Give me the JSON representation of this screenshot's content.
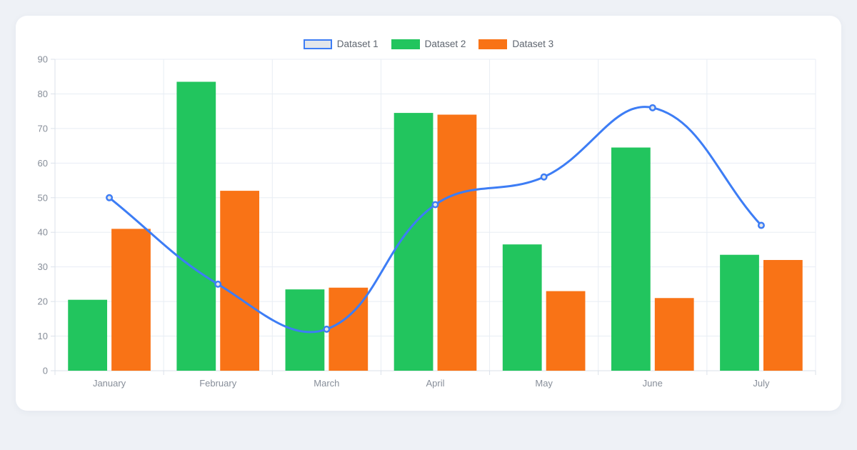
{
  "page": {
    "background_color": "#eef1f6",
    "card_background_color": "#ffffff"
  },
  "chart_data": {
    "type": "mixed-bar-line",
    "title": "",
    "xlabel": "",
    "ylabel": "",
    "categories": [
      "January",
      "February",
      "March",
      "April",
      "May",
      "June",
      "July"
    ],
    "series": [
      {
        "name": "Dataset 1",
        "type": "line",
        "color": "#3d7df5",
        "point_fill": "#e3e6ea",
        "values": [
          50,
          25,
          12,
          48,
          56,
          76,
          42
        ]
      },
      {
        "name": "Dataset 2",
        "type": "bar",
        "color": "#22c55e",
        "values": [
          20.5,
          83.5,
          23.5,
          74.5,
          36.5,
          64.5,
          33.5
        ]
      },
      {
        "name": "Dataset 3",
        "type": "bar",
        "color": "#f97316",
        "values": [
          41,
          52,
          24,
          74,
          23,
          21,
          32
        ]
      }
    ],
    "ylim": [
      0,
      90
    ],
    "y_ticks": [
      0,
      10,
      20,
      30,
      40,
      50,
      60,
      70,
      80,
      90
    ],
    "grid": true,
    "legend_position": "top",
    "line_tension": 0.4,
    "colors": {
      "grid_line": "#e8edf4",
      "axis_border": "#dbe1ea",
      "tick_label": "#878e99",
      "legend_text": "#5f6670",
      "line_swatch_fill": "#e3e6ea"
    }
  }
}
